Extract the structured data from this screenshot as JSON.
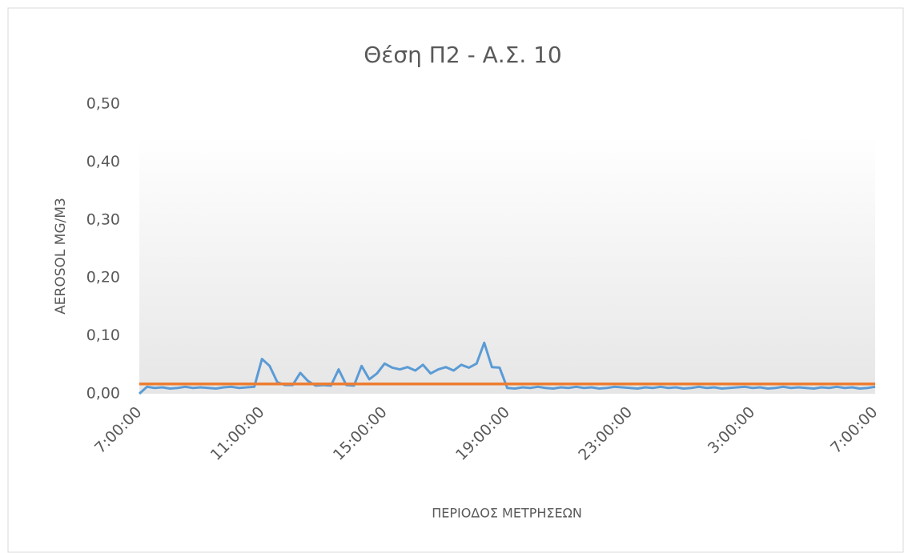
{
  "chart_data": {
    "type": "line",
    "title": "Θέση Π2 - Α.Σ. 10",
    "x_label": "ΠΕΡΙΟΔΟΣ ΜΕΤΡΗΣΕΩΝ",
    "y_label": "AEROSOL MG/M3",
    "categories": [
      "7:00:00",
      null,
      null,
      null,
      null,
      null,
      null,
      null,
      null,
      null,
      null,
      null,
      null,
      null,
      null,
      null,
      "11:00:00",
      null,
      null,
      null,
      null,
      null,
      null,
      null,
      null,
      null,
      null,
      null,
      null,
      null,
      null,
      null,
      "15:00:00",
      null,
      null,
      null,
      null,
      null,
      null,
      null,
      null,
      null,
      null,
      null,
      null,
      null,
      null,
      null,
      "19:00:00",
      null,
      null,
      null,
      null,
      null,
      null,
      null,
      null,
      null,
      null,
      null,
      null,
      null,
      null,
      null,
      "23:00:00",
      null,
      null,
      null,
      null,
      null,
      null,
      null,
      null,
      null,
      null,
      null,
      null,
      null,
      null,
      null,
      "3:00:00",
      null,
      null,
      null,
      null,
      null,
      null,
      null,
      null,
      null,
      null,
      null,
      null,
      null,
      null,
      null,
      "7:00:00"
    ],
    "series": [
      {
        "color": "#5b9bd5",
        "values": [
          0.0,
          0.012,
          0.01,
          0.011,
          0.009,
          0.01,
          0.012,
          0.01,
          0.011,
          0.01,
          0.009,
          0.011,
          0.012,
          0.01,
          0.011,
          0.012,
          0.06,
          0.048,
          0.02,
          0.015,
          0.015,
          0.036,
          0.022,
          0.014,
          0.015,
          0.014,
          0.042,
          0.015,
          0.014,
          0.048,
          0.025,
          0.035,
          0.052,
          0.045,
          0.042,
          0.046,
          0.04,
          0.05,
          0.035,
          0.042,
          0.046,
          0.04,
          0.05,
          0.045,
          0.052,
          0.088,
          0.046,
          0.045,
          0.01,
          0.009,
          0.011,
          0.01,
          0.012,
          0.01,
          0.009,
          0.011,
          0.01,
          0.012,
          0.01,
          0.011,
          0.009,
          0.01,
          0.012,
          0.011,
          0.01,
          0.009,
          0.011,
          0.01,
          0.012,
          0.01,
          0.011,
          0.009,
          0.01,
          0.012,
          0.01,
          0.011,
          0.009,
          0.01,
          0.011,
          0.012,
          0.01,
          0.011,
          0.009,
          0.01,
          0.012,
          0.01,
          0.011,
          0.01,
          0.009,
          0.011,
          0.01,
          0.012,
          0.01,
          0.011,
          0.009,
          0.01,
          0.012
        ]
      },
      {
        "color": "#ed7d31",
        "values": [
          0.017,
          0.017,
          0.017,
          0.017,
          0.017,
          0.017,
          0.017,
          0.017,
          0.017,
          0.017,
          0.017,
          0.017,
          0.017,
          0.017,
          0.017,
          0.017,
          0.017,
          0.017,
          0.017,
          0.017,
          0.017,
          0.017,
          0.017,
          0.017,
          0.017,
          0.017,
          0.017,
          0.017,
          0.017,
          0.017,
          0.017,
          0.017,
          0.017,
          0.017,
          0.017,
          0.017,
          0.017,
          0.017,
          0.017,
          0.017,
          0.017,
          0.017,
          0.017,
          0.017,
          0.017,
          0.017,
          0.017,
          0.017,
          0.017,
          0.017,
          0.017,
          0.017,
          0.017,
          0.017,
          0.017,
          0.017,
          0.017,
          0.017,
          0.017,
          0.017,
          0.017,
          0.017,
          0.017,
          0.017,
          0.017,
          0.017,
          0.017,
          0.017,
          0.017,
          0.017,
          0.017,
          0.017,
          0.017,
          0.017,
          0.017,
          0.017,
          0.017,
          0.017,
          0.017,
          0.017,
          0.017,
          0.017,
          0.017,
          0.017,
          0.017,
          0.017,
          0.017,
          0.017,
          0.017,
          0.017,
          0.017,
          0.017,
          0.017,
          0.017,
          0.017,
          0.017,
          0.017
        ]
      }
    ],
    "ylim": [
      0,
      0.5
    ],
    "yticks": [
      {
        "value": 0,
        "label": "0,00"
      },
      {
        "value": 0.1,
        "label": "0,10"
      },
      {
        "value": 0.2,
        "label": "0,20"
      },
      {
        "value": 0.3,
        "label": "0,30"
      },
      {
        "value": 0.4,
        "label": "0,40"
      },
      {
        "value": 0.5,
        "label": "0,50"
      }
    ],
    "grid": false
  }
}
